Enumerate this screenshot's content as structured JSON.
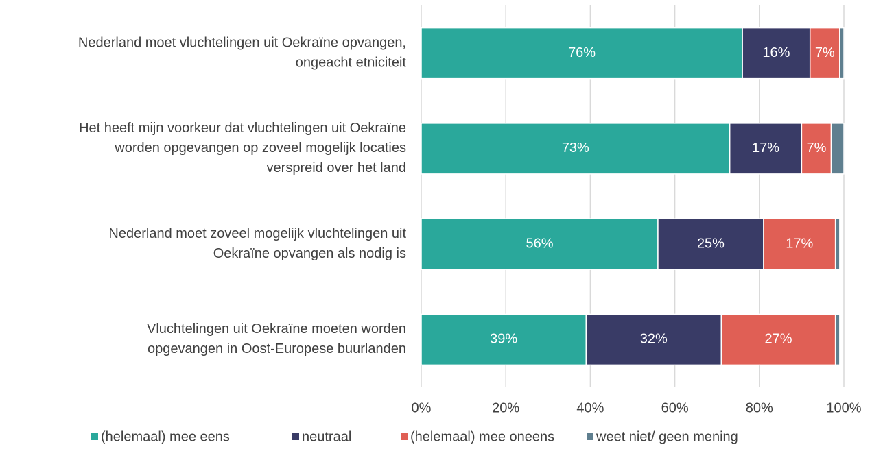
{
  "chart_data": {
    "type": "stacked_bar_horizontal",
    "categories": [
      [
        "Nederland moet vluchtelingen uit Oekraïne opvangen,",
        "ongeacht etniciteit"
      ],
      [
        "Het heeft mijn voorkeur dat vluchtelingen uit Oekraïne",
        "worden opgevangen op zoveel mogelijk locaties",
        "verspreid over het land"
      ],
      [
        "Nederland moet zoveel mogelijk vluchtelingen uit",
        "Oekraïne opvangen als nodig is"
      ],
      [
        "Vluchtelingen uit Oekraïne moeten worden",
        "opgevangen in Oost-Europese buurlanden"
      ]
    ],
    "series": [
      {
        "name": "(helemaal) mee eens",
        "color": "#2aa89b",
        "values": [
          76,
          73,
          56,
          39
        ],
        "value_labels": [
          "76%",
          "73%",
          "56%",
          "39%"
        ]
      },
      {
        "name": "neutraal",
        "color": "#393b66",
        "values": [
          16,
          17,
          25,
          32
        ],
        "value_labels": [
          "16%",
          "17%",
          "25%",
          "32%"
        ]
      },
      {
        "name": "(helemaal) mee oneens",
        "color": "#e05f55",
        "values": [
          7,
          7,
          17,
          27
        ],
        "value_labels": [
          "7%",
          "7%",
          "17%",
          "27%"
        ]
      },
      {
        "name": "weet niet/ geen mening",
        "color": "#5f7f8f",
        "values": [
          1,
          3,
          1,
          1
        ]
      }
    ],
    "xlim": [
      0,
      100
    ],
    "xticks": [
      {
        "value": 0,
        "label": "0%"
      },
      {
        "value": 20,
        "label": "20%"
      },
      {
        "value": 40,
        "label": "40%"
      },
      {
        "value": 60,
        "label": "60%"
      },
      {
        "value": 80,
        "label": "80%"
      },
      {
        "value": 100,
        "label": "100%"
      }
    ],
    "grid": true,
    "legend": "bottom"
  }
}
